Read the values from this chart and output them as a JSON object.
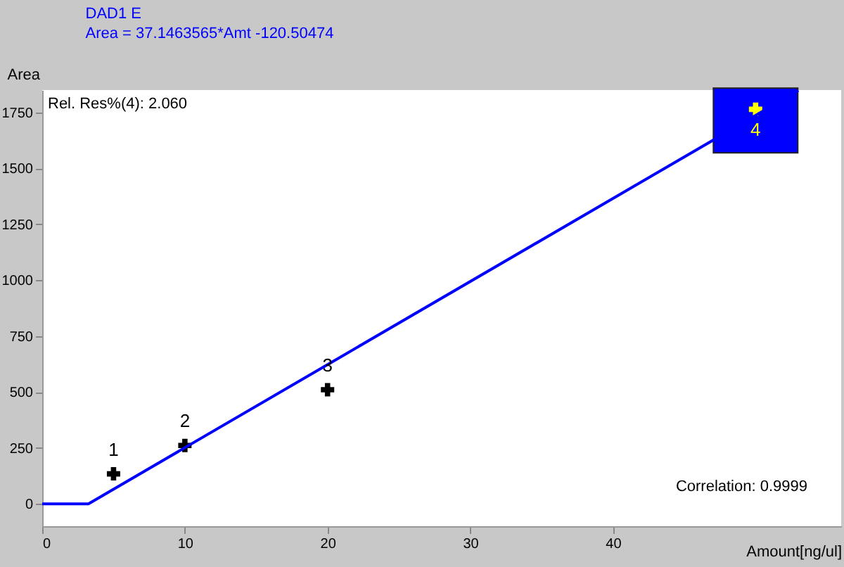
{
  "chart_data": {
    "type": "scatter",
    "title": "DAD1 E",
    "subtitle": "Area = 37.1463565*Amt -120.50474",
    "xlabel": "Amount[ng/ul]",
    "ylabel": "Area",
    "series": [
      {
        "color": "#000000",
        "colors": [
          "#000000",
          "#000000",
          "#000000",
          "#ffff00"
        ],
        "marker": "cross",
        "x": [
          5,
          10,
          20,
          50
        ],
        "values": [
          134,
          261,
          510,
          1764
        ]
      },
      {
        "type": "line",
        "color": "#0000ff",
        "x": [
          0,
          3.24,
          53
        ],
        "values": [
          0,
          0,
          1848
        ]
      }
    ],
    "annotations": [
      "Rel. Res%(4): 2.060",
      "Correlation: 0.9999",
      {
        "text": "1",
        "x": 5,
        "y": 134
      },
      {
        "text": "2",
        "x": 10,
        "y": 261
      },
      {
        "text": "3",
        "x": 20,
        "y": 510
      },
      {
        "text": "4",
        "x": 50,
        "y": 1764
      }
    ],
    "xlim": [
      0,
      56
    ],
    "xticks": [
      0,
      10,
      20,
      30,
      40
    ],
    "ylim": [
      -100,
      1850
    ],
    "yticks": [
      0,
      250,
      500,
      750,
      1000,
      1250,
      1500,
      1750
    ],
    "grid": false
  }
}
